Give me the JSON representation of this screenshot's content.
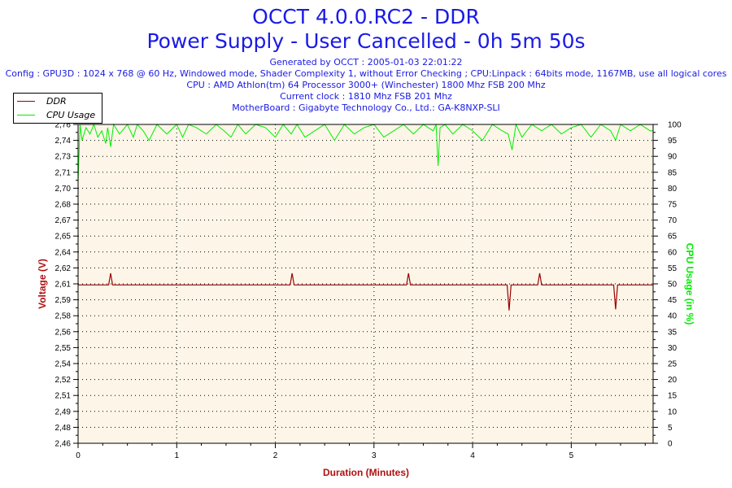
{
  "header": {
    "title": "OCCT 4.0.0.RC2 - DDR",
    "subtitle": "Power Supply - User Cancelled - 0h 5m 50s",
    "lines": [
      "Generated by OCCT : 2005-01-03 22:01:22",
      "Config : GPU3D : 1024 x 768 @ 60 Hz, Windowed mode, Shader Complexity 1, without Error Checking ; CPU:Linpack : 64bits mode, 1167MB, use all logical cores",
      "CPU : AMD Athlon(tm) 64 Processor 3000+ (Winchester) 1800 Mhz FSB 200 Mhz",
      "Current clock : 1810 Mhz FSB 201 Mhz",
      "MotherBoard : Gigabyte Technology Co., Ltd.: GA-K8NXP-SLI"
    ]
  },
  "chart_data": {
    "type": "line",
    "xlabel": "Duration (Minutes)",
    "ylabel": "Voltage (V)",
    "y2label": "CPU Usage (in %)",
    "xlim": [
      0,
      5.83
    ],
    "ylim": [
      2.46,
      2.76
    ],
    "y2lim": [
      0,
      100
    ],
    "xticks": [
      "0",
      "1",
      "2",
      "3",
      "4",
      "5"
    ],
    "yticks": [
      "2,46",
      "2,48",
      "2,49",
      "2,51",
      "2,52",
      "2,54",
      "2,55",
      "2,56",
      "2,58",
      "2,59",
      "2,61",
      "2,62",
      "2,64",
      "2,65",
      "2,67",
      "2,68",
      "2,70",
      "2,71",
      "2,73",
      "2,74",
      "2,76"
    ],
    "y2ticks": [
      "0",
      "5",
      "10",
      "15",
      "20",
      "25",
      "30",
      "35",
      "40",
      "45",
      "50",
      "55",
      "60",
      "65",
      "70",
      "75",
      "80",
      "85",
      "90",
      "95",
      "100"
    ],
    "legend_position": "top-left",
    "grid": true,
    "colors": {
      "ddr": "#990000",
      "cpu": "#00ee00",
      "plot_bg": "#fdf6e8",
      "title": "#1a1ae6",
      "axis_label": "#b01010"
    },
    "series": [
      {
        "name": "DDR",
        "axis": "left",
        "x": [
          0,
          0.31,
          0.33,
          0.35,
          2.15,
          2.17,
          2.19,
          3.33,
          3.35,
          3.37,
          4.35,
          4.37,
          4.39,
          4.66,
          4.68,
          4.7,
          5.43,
          5.45,
          5.47,
          5.83
        ],
        "y": [
          2.609,
          2.609,
          2.62,
          2.609,
          2.609,
          2.62,
          2.609,
          2.609,
          2.62,
          2.609,
          2.609,
          2.585,
          2.609,
          2.609,
          2.62,
          2.609,
          2.609,
          2.586,
          2.609,
          2.609
        ]
      },
      {
        "name": "CPU Usage",
        "axis": "right",
        "x": [
          0,
          0.02,
          0.04,
          0.08,
          0.12,
          0.16,
          0.2,
          0.24,
          0.28,
          0.3,
          0.33,
          0.36,
          0.42,
          0.5,
          0.56,
          0.6,
          0.66,
          0.72,
          0.8,
          0.9,
          1.0,
          1.06,
          1.12,
          1.2,
          1.3,
          1.4,
          1.48,
          1.55,
          1.62,
          1.7,
          1.8,
          1.9,
          2.0,
          2.08,
          2.16,
          2.22,
          2.3,
          2.4,
          2.5,
          2.6,
          2.7,
          2.8,
          2.9,
          3.0,
          3.1,
          3.2,
          3.3,
          3.4,
          3.5,
          3.6,
          3.63,
          3.65,
          3.67,
          3.72,
          3.8,
          3.9,
          4.0,
          4.1,
          4.2,
          4.3,
          4.36,
          4.4,
          4.44,
          4.5,
          4.6,
          4.7,
          4.8,
          4.9,
          5.0,
          5.1,
          5.2,
          5.3,
          5.4,
          5.45,
          5.5,
          5.6,
          5.7,
          5.75,
          5.8,
          5.83
        ],
        "y": [
          82,
          100,
          95,
          99,
          97,
          100,
          96,
          98,
          94,
          99,
          93,
          100,
          97,
          100,
          96,
          100,
          98,
          95,
          100,
          97,
          100,
          96,
          100,
          99,
          97,
          100,
          98,
          96,
          100,
          97,
          100,
          99,
          96,
          100,
          97,
          100,
          96,
          98,
          100,
          95,
          100,
          97,
          99,
          100,
          96,
          98,
          100,
          97,
          100,
          98,
          100,
          87,
          99,
          100,
          97,
          100,
          98,
          95,
          100,
          98,
          97,
          92,
          100,
          96,
          100,
          98,
          100,
          97,
          99,
          100,
          96,
          100,
          98,
          95,
          100,
          98,
          100,
          99,
          98,
          98
        ]
      }
    ]
  }
}
